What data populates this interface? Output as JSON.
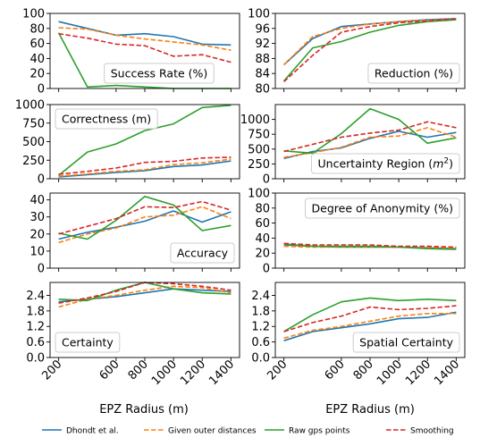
{
  "xlabel": "EPZ Radius (m)",
  "colors": {
    "dhondt": "#1f77b4",
    "outer": "#ff7f0e",
    "raw": "#2ca02c",
    "smooth": "#d62728"
  },
  "legend": [
    {
      "key": "dhondt",
      "label": "Dhondt et al.",
      "dash": false
    },
    {
      "key": "outer",
      "label": "Given outer distances",
      "dash": true
    },
    {
      "key": "raw",
      "label": "Raw gps points",
      "dash": false
    },
    {
      "key": "smooth",
      "label": "Smoothing",
      "dash": true
    }
  ],
  "chart_data": [
    {
      "type": "line",
      "title": "Success Rate (%)",
      "col": 0,
      "row": 0,
      "box": "center",
      "x": [
        200,
        400,
        600,
        800,
        1000,
        1200,
        1400
      ],
      "ylim": [
        0,
        100
      ],
      "yticks": [
        "0",
        "20",
        "40",
        "60",
        "80",
        "100"
      ],
      "ytickvals": [
        0,
        20,
        40,
        60,
        80,
        100
      ],
      "series": [
        {
          "name": "Dhondt et al.",
          "key": "dhondt",
          "values": [
            89,
            80,
            71,
            73,
            69,
            59,
            58
          ]
        },
        {
          "name": "Given outer distances",
          "key": "outer",
          "values": [
            81,
            79,
            71,
            66,
            62,
            58,
            51
          ]
        },
        {
          "name": "Raw gps points",
          "key": "raw",
          "values": [
            74,
            2,
            4,
            2,
            0,
            0,
            0
          ]
        },
        {
          "name": "Smoothing",
          "key": "smooth",
          "values": [
            73,
            67,
            59,
            57,
            43,
            45,
            35
          ]
        }
      ]
    },
    {
      "type": "line",
      "title": "Reduction (%)",
      "col": 1,
      "row": 0,
      "box": "right",
      "x": [
        200,
        400,
        600,
        800,
        1000,
        1200,
        1400
      ],
      "ylim": [
        80,
        100
      ],
      "yticks": [
        "80",
        "84",
        "88",
        "92",
        "96",
        "100"
      ],
      "ytickvals": [
        80,
        84,
        88,
        92,
        96,
        100
      ],
      "series": [
        {
          "name": "Dhondt et al.",
          "key": "dhondt",
          "values": [
            86.3,
            93.3,
            96.5,
            97.2,
            97.8,
            98.3,
            98.6
          ]
        },
        {
          "name": "Given outer distances",
          "key": "outer",
          "values": [
            86.3,
            93.8,
            96.0,
            97.2,
            97.8,
            98.2,
            98.5
          ]
        },
        {
          "name": "Raw gps points",
          "key": "raw",
          "values": [
            82.0,
            90.8,
            92.5,
            95.0,
            96.8,
            97.8,
            98.3
          ]
        },
        {
          "name": "Smoothing",
          "key": "smooth",
          "values": [
            81.8,
            88.8,
            95.0,
            96.5,
            97.5,
            98.0,
            98.6
          ]
        }
      ]
    },
    {
      "type": "line",
      "title": "Correctness (m)",
      "col": 0,
      "row": 1,
      "box": "left",
      "x": [
        200,
        400,
        600,
        800,
        1000,
        1200,
        1400
      ],
      "ylim": [
        0,
        1000
      ],
      "yticks": [
        "0",
        "250",
        "500",
        "750",
        "1000"
      ],
      "ytickvals": [
        0,
        250,
        500,
        750,
        1000
      ],
      "series": [
        {
          "name": "Dhondt et al.",
          "key": "dhondt",
          "values": [
            25,
            55,
            85,
            110,
            165,
            185,
            240
          ]
        },
        {
          "name": "Given outer distances",
          "key": "outer",
          "values": [
            35,
            65,
            100,
            120,
            190,
            215,
            265
          ]
        },
        {
          "name": "Raw gps points",
          "key": "raw",
          "values": [
            45,
            360,
            470,
            650,
            740,
            960,
            990
          ]
        },
        {
          "name": "Smoothing",
          "key": "smooth",
          "values": [
            60,
            100,
            145,
            220,
            235,
            280,
            290
          ]
        }
      ]
    },
    {
      "type": "line",
      "title": "Uncertainty Region (m²)",
      "title_base": "Uncertainty Region (",
      "title_unit": "m",
      "title_sup": "2",
      "title_end": ")",
      "col": 1,
      "row": 1,
      "box": "right",
      "x": [
        200,
        400,
        600,
        800,
        1000,
        1200,
        1400
      ],
      "ylim": [
        0,
        1250
      ],
      "yticks": [
        "0",
        "250",
        "500",
        "750",
        "1000"
      ],
      "ytickvals": [
        0,
        250,
        500,
        750,
        1000
      ],
      "series": [
        {
          "name": "Dhondt et al.",
          "key": "dhondt",
          "values": [
            340,
            460,
            520,
            680,
            800,
            700,
            780
          ]
        },
        {
          "name": "Given outer distances",
          "key": "outer",
          "values": [
            360,
            440,
            530,
            700,
            720,
            860,
            700
          ]
        },
        {
          "name": "Raw gps points",
          "key": "raw",
          "values": [
            470,
            430,
            760,
            1180,
            1000,
            600,
            690
          ]
        },
        {
          "name": "Smoothing",
          "key": "smooth",
          "values": [
            460,
            580,
            700,
            770,
            820,
            960,
            860
          ]
        }
      ]
    },
    {
      "type": "line",
      "title": "Accuracy",
      "col": 0,
      "row": 2,
      "box": "right",
      "x": [
        200,
        400,
        600,
        800,
        1000,
        1200,
        1400
      ],
      "ylim": [
        0,
        44
      ],
      "yticks": [
        "0",
        "10",
        "20",
        "30",
        "40"
      ],
      "ytickvals": [
        0,
        10,
        20,
        30,
        40
      ],
      "series": [
        {
          "name": "Dhondt et al.",
          "key": "dhondt",
          "values": [
            17,
            21,
            24,
            27.5,
            33.5,
            27,
            33
          ]
        },
        {
          "name": "Given outer distances",
          "key": "outer",
          "values": [
            15,
            20,
            23.5,
            30,
            31,
            36,
            29
          ]
        },
        {
          "name": "Raw gps points",
          "key": "raw",
          "values": [
            20.5,
            17,
            28,
            42,
            37,
            22,
            25
          ]
        },
        {
          "name": "Smoothing",
          "key": "smooth",
          "values": [
            20,
            24.5,
            29,
            36,
            35.5,
            39,
            34
          ]
        }
      ]
    },
    {
      "type": "line",
      "title": "Degree of Anonymity (%)",
      "col": 1,
      "row": 2,
      "box": "right",
      "x": [
        200,
        400,
        600,
        800,
        1000,
        1200,
        1400
      ],
      "ylim": [
        0,
        100
      ],
      "yticks": [
        "0",
        "20",
        "40",
        "60",
        "80",
        "100"
      ],
      "ytickvals": [
        0,
        20,
        40,
        60,
        80,
        100
      ],
      "series": [
        {
          "name": "Dhondt et al.",
          "key": "dhondt",
          "values": [
            31,
            29,
            28,
            28,
            28,
            27,
            26
          ]
        },
        {
          "name": "Given outer distances",
          "key": "outer",
          "values": [
            29,
            28,
            28,
            28,
            28,
            27,
            27
          ]
        },
        {
          "name": "Raw gps points",
          "key": "raw",
          "values": [
            32,
            29,
            29,
            29,
            28,
            26,
            25
          ]
        },
        {
          "name": "Smoothing",
          "key": "smooth",
          "values": [
            33,
            31,
            31,
            31,
            29,
            29,
            28
          ]
        }
      ]
    },
    {
      "type": "line",
      "title": "Certainty",
      "col": 0,
      "row": 3,
      "box": "left",
      "x": [
        200,
        400,
        600,
        800,
        1000,
        1200,
        1400
      ],
      "ylim": [
        0,
        2.9
      ],
      "yticks": [
        "0.0",
        "0.6",
        "1.2",
        "1.8",
        "2.4"
      ],
      "ytickvals": [
        0,
        0.6,
        1.2,
        1.8,
        2.4
      ],
      "series": [
        {
          "name": "Dhondt et al.",
          "key": "dhondt",
          "values": [
            2.15,
            2.25,
            2.35,
            2.5,
            2.65,
            2.6,
            2.55
          ]
        },
        {
          "name": "Given outer distances",
          "key": "outer",
          "values": [
            1.95,
            2.25,
            2.4,
            2.6,
            2.75,
            2.7,
            2.5
          ]
        },
        {
          "name": "Raw gps points",
          "key": "raw",
          "values": [
            2.25,
            2.2,
            2.6,
            2.9,
            2.65,
            2.5,
            2.45
          ]
        },
        {
          "name": "Smoothing",
          "key": "smooth",
          "values": [
            2.1,
            2.3,
            2.55,
            2.9,
            2.85,
            2.75,
            2.6
          ]
        }
      ]
    },
    {
      "type": "line",
      "title": "Spatial Certainty",
      "col": 1,
      "row": 3,
      "box": "right",
      "x": [
        200,
        400,
        600,
        800,
        1000,
        1200,
        1400
      ],
      "ylim": [
        0,
        2.9
      ],
      "yticks": [
        "0.0",
        "0.6",
        "1.2",
        "1.8",
        "2.4"
      ],
      "ytickvals": [
        0,
        0.6,
        1.2,
        1.8,
        2.4
      ],
      "series": [
        {
          "name": "Dhondt et al.",
          "key": "dhondt",
          "values": [
            0.65,
            1.0,
            1.15,
            1.3,
            1.5,
            1.55,
            1.75
          ]
        },
        {
          "name": "Given outer distances",
          "key": "outer",
          "values": [
            0.75,
            1.05,
            1.2,
            1.4,
            1.6,
            1.7,
            1.7
          ]
        },
        {
          "name": "Raw gps points",
          "key": "raw",
          "values": [
            1.0,
            1.65,
            2.15,
            2.3,
            2.2,
            2.25,
            2.2
          ]
        },
        {
          "name": "Smoothing",
          "key": "smooth",
          "values": [
            1.0,
            1.35,
            1.6,
            1.95,
            1.85,
            1.9,
            2.0
          ]
        }
      ]
    }
  ],
  "xticks": [
    200,
    600,
    800,
    1000,
    1200,
    1400
  ]
}
